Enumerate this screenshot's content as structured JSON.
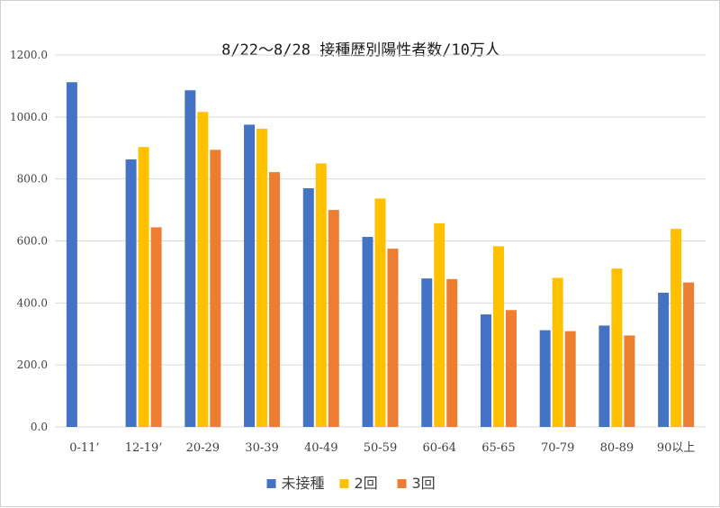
{
  "chart_data": {
    "type": "bar",
    "title": "8/22～8/28 接種歴別陽性者数/10万人",
    "xlabel": "",
    "ylabel": "",
    "ylim": [
      0,
      1200
    ],
    "yticks": [
      "0.0",
      "200.0",
      "400.0",
      "600.0",
      "800.0",
      "1000.0",
      "1200.0"
    ],
    "grid": true,
    "legend_position": "bottom",
    "categories": [
      "0-11’",
      "12-19’",
      "20-29",
      "30-39",
      "40-49",
      "50-59",
      "60-64",
      "65-65",
      "70-79",
      "80-89",
      "90以上"
    ],
    "series": [
      {
        "name": "未接種",
        "color": "#4472C4",
        "values": [
          1112,
          863,
          1086,
          975,
          770,
          613,
          479,
          363,
          312,
          327,
          433
        ]
      },
      {
        "name": "2回",
        "color": "#FFC000",
        "values": [
          null,
          903,
          1016,
          962,
          850,
          737,
          657,
          583,
          481,
          511,
          639
        ]
      },
      {
        "name": "3回",
        "color": "#ED7D31",
        "values": [
          null,
          644,
          894,
          822,
          700,
          575,
          477,
          377,
          309,
          295,
          466
        ]
      }
    ]
  }
}
